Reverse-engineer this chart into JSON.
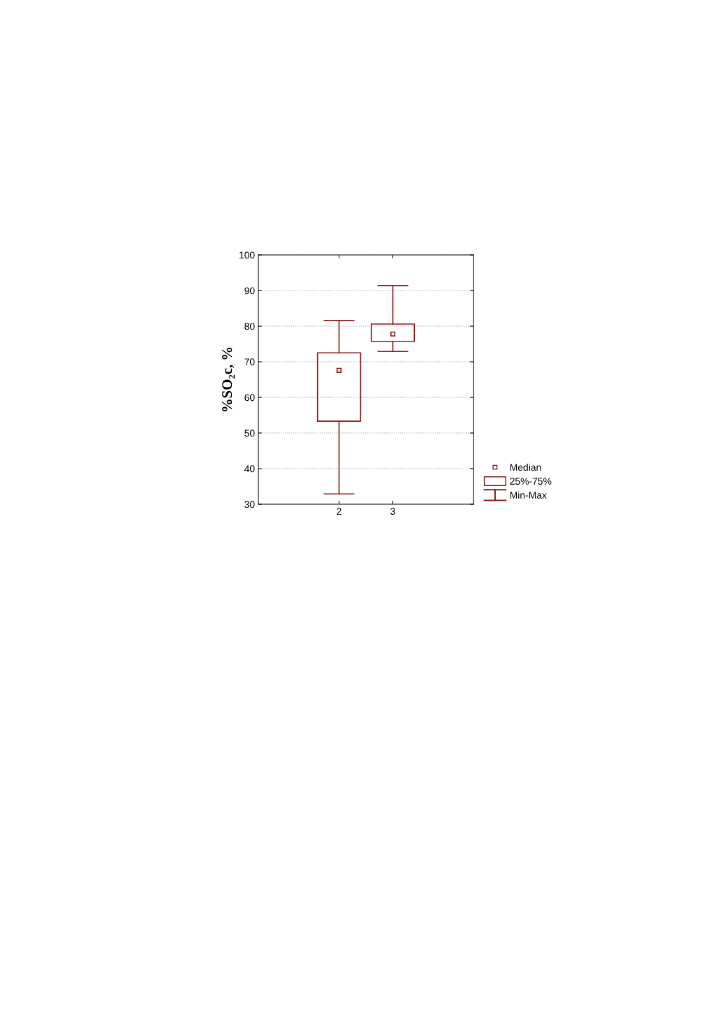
{
  "chart_data": {
    "type": "box",
    "ylabel": "%SO₂c, %",
    "categories": [
      "2",
      "3"
    ],
    "color": "#8b1a1a",
    "boxes": [
      {
        "low": 32.9,
        "q1": 53.3,
        "median": 67.6,
        "q3": 72.5,
        "high": 81.6
      },
      {
        "low": 72.9,
        "q1": 75.7,
        "median": 77.8,
        "q3": 80.6,
        "high": 91.4
      }
    ],
    "ylim": [
      30,
      100
    ],
    "yticks": [
      30,
      40,
      50,
      60,
      70,
      80,
      90,
      100
    ],
    "grid": "y",
    "marker": "square",
    "annotations": [
      "Median",
      "25%-75%",
      "Min-Max"
    ]
  }
}
